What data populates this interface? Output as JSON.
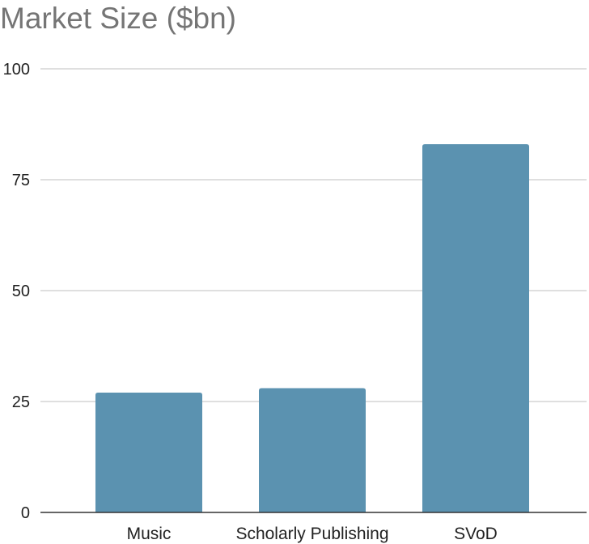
{
  "chart_data": {
    "type": "bar",
    "title": "Market Size ($bn)",
    "xlabel": "",
    "ylabel": "",
    "categories": [
      "Music",
      "Scholarly Publishing",
      "SVoD"
    ],
    "values": [
      27,
      28,
      83
    ],
    "ylim": [
      0,
      100
    ],
    "yticks": [
      0,
      25,
      50,
      75,
      100
    ],
    "grid": true,
    "legend": "none",
    "bar_color": "#5b92b0",
    "grid_color": "#cccccc",
    "axis_color": "#333333"
  }
}
